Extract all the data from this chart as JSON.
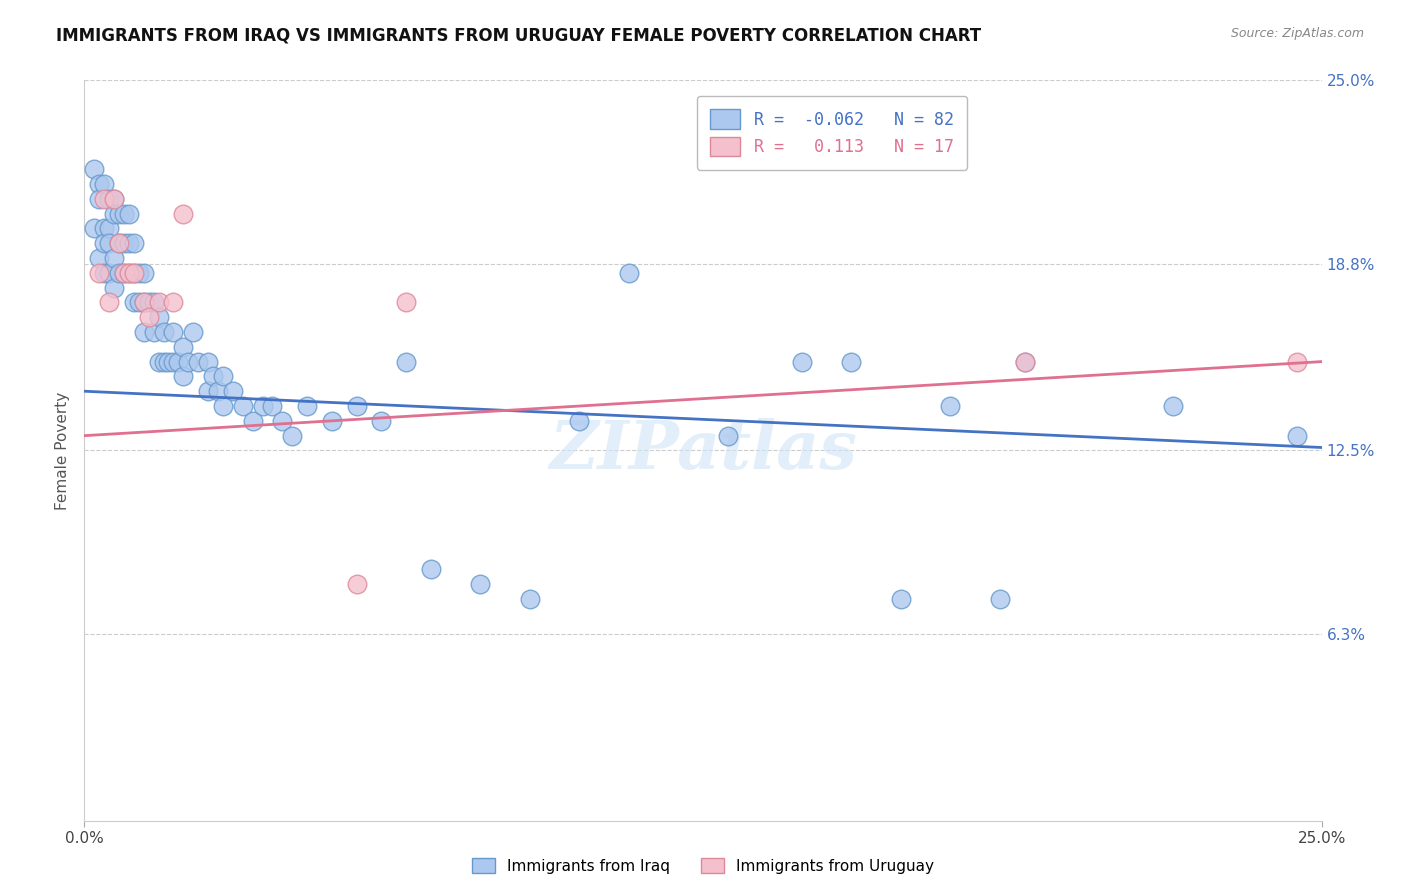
{
  "title": "IMMIGRANTS FROM IRAQ VS IMMIGRANTS FROM URUGUAY FEMALE POVERTY CORRELATION CHART",
  "source": "Source: ZipAtlas.com",
  "ylabel": "Female Poverty",
  "watermark": "ZIPatlas",
  "iraq_R": -0.062,
  "iraq_N": 82,
  "uruguay_R": 0.113,
  "uruguay_N": 17,
  "xlim": [
    0.0,
    0.25
  ],
  "ylim": [
    0.0,
    0.25
  ],
  "iraq_color": "#adc8ee",
  "iraq_edge_color": "#6699cc",
  "uruguay_color": "#f4c0ce",
  "uruguay_edge_color": "#dd8899",
  "iraq_line_color": "#4472c4",
  "uruguay_line_color": "#e07090",
  "background_color": "#ffffff",
  "grid_color": "#cccccc",
  "iraq_scatter_x": [
    0.002,
    0.002,
    0.003,
    0.003,
    0.003,
    0.004,
    0.004,
    0.004,
    0.004,
    0.005,
    0.005,
    0.005,
    0.005,
    0.006,
    0.006,
    0.006,
    0.006,
    0.007,
    0.007,
    0.007,
    0.008,
    0.008,
    0.008,
    0.009,
    0.009,
    0.009,
    0.01,
    0.01,
    0.01,
    0.011,
    0.011,
    0.012,
    0.012,
    0.012,
    0.013,
    0.014,
    0.014,
    0.015,
    0.015,
    0.016,
    0.016,
    0.017,
    0.018,
    0.018,
    0.019,
    0.02,
    0.02,
    0.021,
    0.022,
    0.023,
    0.025,
    0.025,
    0.026,
    0.027,
    0.028,
    0.028,
    0.03,
    0.032,
    0.034,
    0.036,
    0.038,
    0.04,
    0.042,
    0.045,
    0.05,
    0.055,
    0.06,
    0.065,
    0.07,
    0.08,
    0.09,
    0.1,
    0.11,
    0.13,
    0.145,
    0.155,
    0.165,
    0.175,
    0.185,
    0.19,
    0.22,
    0.245
  ],
  "iraq_scatter_y": [
    0.22,
    0.2,
    0.215,
    0.21,
    0.19,
    0.215,
    0.2,
    0.195,
    0.185,
    0.21,
    0.2,
    0.195,
    0.185,
    0.21,
    0.205,
    0.19,
    0.18,
    0.205,
    0.195,
    0.185,
    0.205,
    0.195,
    0.185,
    0.205,
    0.195,
    0.185,
    0.195,
    0.185,
    0.175,
    0.185,
    0.175,
    0.185,
    0.175,
    0.165,
    0.175,
    0.175,
    0.165,
    0.17,
    0.155,
    0.165,
    0.155,
    0.155,
    0.165,
    0.155,
    0.155,
    0.16,
    0.15,
    0.155,
    0.165,
    0.155,
    0.155,
    0.145,
    0.15,
    0.145,
    0.15,
    0.14,
    0.145,
    0.14,
    0.135,
    0.14,
    0.14,
    0.135,
    0.13,
    0.14,
    0.135,
    0.14,
    0.135,
    0.155,
    0.085,
    0.08,
    0.075,
    0.135,
    0.185,
    0.13,
    0.155,
    0.155,
    0.075,
    0.14,
    0.075,
    0.155,
    0.14,
    0.13
  ],
  "uruguay_scatter_x": [
    0.003,
    0.004,
    0.005,
    0.006,
    0.007,
    0.008,
    0.009,
    0.01,
    0.012,
    0.013,
    0.015,
    0.018,
    0.02,
    0.055,
    0.065,
    0.19,
    0.245
  ],
  "uruguay_scatter_y": [
    0.185,
    0.21,
    0.175,
    0.21,
    0.195,
    0.185,
    0.185,
    0.185,
    0.175,
    0.17,
    0.175,
    0.175,
    0.205,
    0.08,
    0.175,
    0.155,
    0.155
  ]
}
